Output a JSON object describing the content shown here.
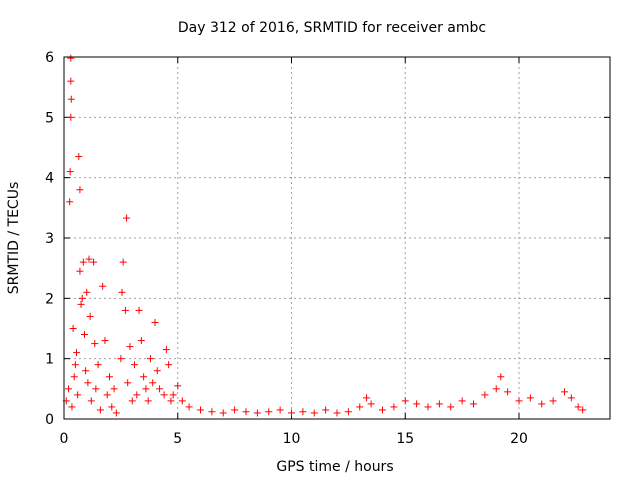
{
  "chart_data": {
    "type": "scatter",
    "title": "Day 312 of 2016, SRMTID for receiver ambc",
    "xlabel": "GPS time / hours",
    "ylabel": "SRMTID / TECUs",
    "xlim": [
      0,
      24
    ],
    "ylim": [
      0,
      6
    ],
    "x_ticks": [
      0,
      5,
      10,
      15,
      20
    ],
    "y_ticks": [
      0,
      1,
      2,
      3,
      4,
      5,
      6
    ],
    "grid": true,
    "marker": "+",
    "color": "#ff0000",
    "series": [
      {
        "name": "SRMTID",
        "points": [
          [
            0.1,
            0.3
          ],
          [
            0.2,
            0.5
          ],
          [
            0.25,
            3.6
          ],
          [
            0.27,
            4.1
          ],
          [
            0.3,
            5.0
          ],
          [
            0.32,
            5.3
          ],
          [
            0.3,
            5.6
          ],
          [
            0.3,
            5.98
          ],
          [
            0.35,
            0.2
          ],
          [
            0.4,
            1.5
          ],
          [
            0.45,
            0.7
          ],
          [
            0.5,
            0.9
          ],
          [
            0.55,
            1.1
          ],
          [
            0.6,
            0.4
          ],
          [
            0.65,
            4.35
          ],
          [
            0.7,
            3.8
          ],
          [
            0.7,
            2.45
          ],
          [
            0.75,
            1.9
          ],
          [
            0.8,
            2.0
          ],
          [
            0.85,
            2.6
          ],
          [
            0.9,
            1.4
          ],
          [
            0.95,
            0.8
          ],
          [
            1.0,
            2.1
          ],
          [
            1.05,
            0.6
          ],
          [
            1.1,
            2.65
          ],
          [
            1.15,
            1.7
          ],
          [
            1.2,
            0.3
          ],
          [
            1.3,
            2.6
          ],
          [
            1.35,
            1.25
          ],
          [
            1.4,
            0.5
          ],
          [
            1.5,
            0.9
          ],
          [
            1.6,
            0.15
          ],
          [
            1.7,
            2.2
          ],
          [
            1.8,
            1.3
          ],
          [
            1.9,
            0.4
          ],
          [
            2.0,
            0.7
          ],
          [
            2.1,
            0.2
          ],
          [
            2.2,
            0.5
          ],
          [
            2.3,
            0.1
          ],
          [
            2.5,
            1.0
          ],
          [
            2.55,
            2.1
          ],
          [
            2.6,
            2.6
          ],
          [
            2.7,
            1.8
          ],
          [
            2.75,
            3.33
          ],
          [
            2.8,
            0.6
          ],
          [
            2.9,
            1.2
          ],
          [
            3.0,
            0.3
          ],
          [
            3.1,
            0.9
          ],
          [
            3.2,
            0.4
          ],
          [
            3.3,
            1.8
          ],
          [
            3.4,
            1.3
          ],
          [
            3.5,
            0.7
          ],
          [
            3.6,
            0.5
          ],
          [
            3.7,
            0.3
          ],
          [
            3.8,
            1.0
          ],
          [
            3.9,
            0.6
          ],
          [
            4.0,
            1.6
          ],
          [
            4.1,
            0.8
          ],
          [
            4.2,
            0.5
          ],
          [
            4.4,
            0.4
          ],
          [
            4.5,
            1.15
          ],
          [
            4.6,
            0.9
          ],
          [
            4.7,
            0.3
          ],
          [
            4.8,
            0.4
          ],
          [
            5.0,
            0.55
          ],
          [
            5.2,
            0.3
          ],
          [
            5.5,
            0.2
          ],
          [
            6.0,
            0.15
          ],
          [
            6.5,
            0.12
          ],
          [
            7.0,
            0.1
          ],
          [
            7.5,
            0.15
          ],
          [
            8.0,
            0.12
          ],
          [
            8.5,
            0.1
          ],
          [
            9.0,
            0.12
          ],
          [
            9.5,
            0.15
          ],
          [
            10.0,
            0.1
          ],
          [
            10.5,
            0.12
          ],
          [
            11.0,
            0.1
          ],
          [
            11.5,
            0.15
          ],
          [
            12.0,
            0.1
          ],
          [
            12.5,
            0.12
          ],
          [
            13.0,
            0.2
          ],
          [
            13.3,
            0.35
          ],
          [
            13.5,
            0.25
          ],
          [
            14.0,
            0.15
          ],
          [
            14.5,
            0.2
          ],
          [
            15.0,
            0.3
          ],
          [
            15.5,
            0.25
          ],
          [
            16.0,
            0.2
          ],
          [
            16.5,
            0.25
          ],
          [
            17.0,
            0.2
          ],
          [
            17.5,
            0.3
          ],
          [
            18.0,
            0.25
          ],
          [
            18.5,
            0.4
          ],
          [
            19.0,
            0.5
          ],
          [
            19.2,
            0.7
          ],
          [
            19.5,
            0.45
          ],
          [
            20.0,
            0.3
          ],
          [
            20.5,
            0.35
          ],
          [
            21.0,
            0.25
          ],
          [
            21.5,
            0.3
          ],
          [
            22.0,
            0.45
          ],
          [
            22.3,
            0.35
          ],
          [
            22.6,
            0.2
          ],
          [
            22.8,
            0.15
          ]
        ]
      }
    ]
  }
}
